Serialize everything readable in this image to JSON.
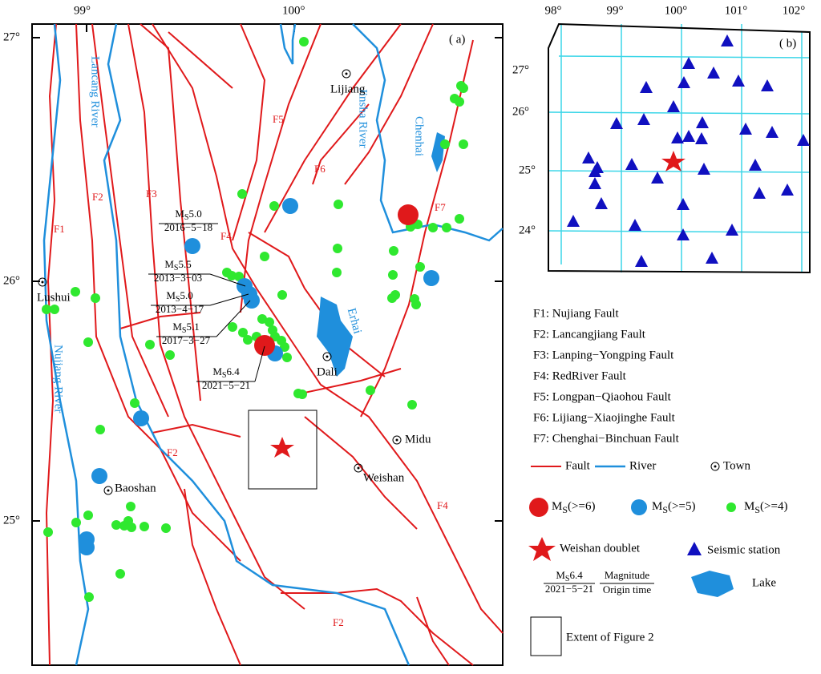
{
  "panel_a": {
    "label": "( a)",
    "x_ticks": [
      "99°",
      "100°"
    ],
    "y_ticks": [
      "27°",
      "26°",
      "25°"
    ],
    "rivers": [
      "Lancang River",
      "Nujiang River",
      "Jinsha River"
    ],
    "lakes": [
      "Chenhai",
      "Erhai"
    ],
    "towns": [
      "Lijiang",
      "Lushui",
      "Dali",
      "Midu",
      "Weishan",
      "Baoshan"
    ],
    "faults": [
      "F1",
      "F2",
      "F3",
      "F4",
      "F5",
      "F6",
      "F7",
      "F2",
      "F4",
      "F2"
    ],
    "events": [
      {
        "m": "M",
        "s": "S",
        "mag": "5.0",
        "date": "2016−5−18"
      },
      {
        "m": "M",
        "s": "S",
        "mag": "5.5",
        "date": "2013−3−03"
      },
      {
        "m": "M",
        "s": "S",
        "mag": "5.0",
        "date": "2013−4−17"
      },
      {
        "m": "M",
        "s": "S",
        "mag": "5.1",
        "date": "2017−3−27"
      },
      {
        "m": "M",
        "s": "S",
        "mag": "6.4",
        "date": "2021−5−21"
      }
    ]
  },
  "panel_b": {
    "label": "( b)",
    "x_ticks": [
      "98°",
      "99°",
      "100°",
      "101°",
      "102°"
    ],
    "y_ticks": [
      "27°",
      "26°",
      "25°",
      "24°"
    ]
  },
  "legend": {
    "faults": [
      "F1:  Nujiang Fault",
      "F2:  Lancangjiang Fault",
      "F3:  Lanping−Yongping Fault",
      "F4:  RedRiver Fault",
      "F5:  Longpan−Qiaohou Fault",
      "F6:  Lijiang−Xiaojinghe Fault",
      "F7:  Chenghai−Binchuan Fault"
    ],
    "fault": "Fault",
    "river": "River",
    "town": "Town",
    "magnitudes": [
      {
        "m": "M",
        "s": "S",
        "text": "(>=6)"
      },
      {
        "m": "M",
        "s": "S",
        "text": "(>=5)"
      },
      {
        "m": "M",
        "s": "S",
        "text": "(>=4)"
      }
    ],
    "doublet": "Weishan doublet",
    "station": "Seismic station",
    "lake": "Lake",
    "example": {
      "m": "M",
      "s": "S",
      "mag": "6.4",
      "date": "2021−5−21"
    },
    "magnitude": "Magnitude",
    "origin_time": "Origin time",
    "extent": "Extent of Figure 2"
  }
}
